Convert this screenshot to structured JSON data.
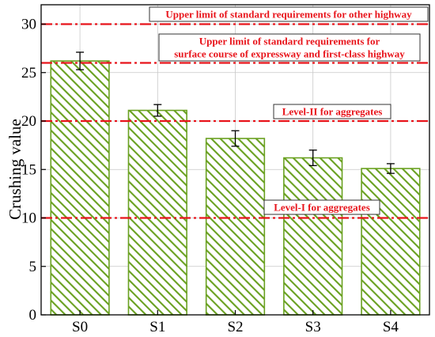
{
  "chart_data": {
    "type": "bar",
    "title": "",
    "xlabel": "",
    "ylabel": "Crushing value",
    "categories": [
      "S0",
      "S1",
      "S2",
      "S3",
      "S4"
    ],
    "series": [
      {
        "values": [
          26.2,
          21.1,
          18.2,
          16.2,
          15.1
        ],
        "errors": [
          0.9,
          0.6,
          0.8,
          0.8,
          0.5
        ]
      }
    ],
    "ylim": [
      0,
      32
    ],
    "yticks": [
      0,
      5,
      10,
      15,
      20,
      25,
      30
    ],
    "grid": true,
    "bar_fill": "hatched",
    "bar_color": "#6aa121",
    "reference_lines": [
      {
        "value": 30,
        "label_lines": [
          "Upper limit of standard requirements for other highway"
        ]
      },
      {
        "value": 26,
        "label_lines": [
          "Upper limit of standard requirements for",
          "surface course of expressway and first-class highway"
        ]
      },
      {
        "value": 20,
        "label_lines": [
          "Level-II for aggregates"
        ]
      },
      {
        "value": 10,
        "label_lines": [
          "Level-I for aggregates"
        ]
      }
    ],
    "reference_color": "#e8141b"
  }
}
